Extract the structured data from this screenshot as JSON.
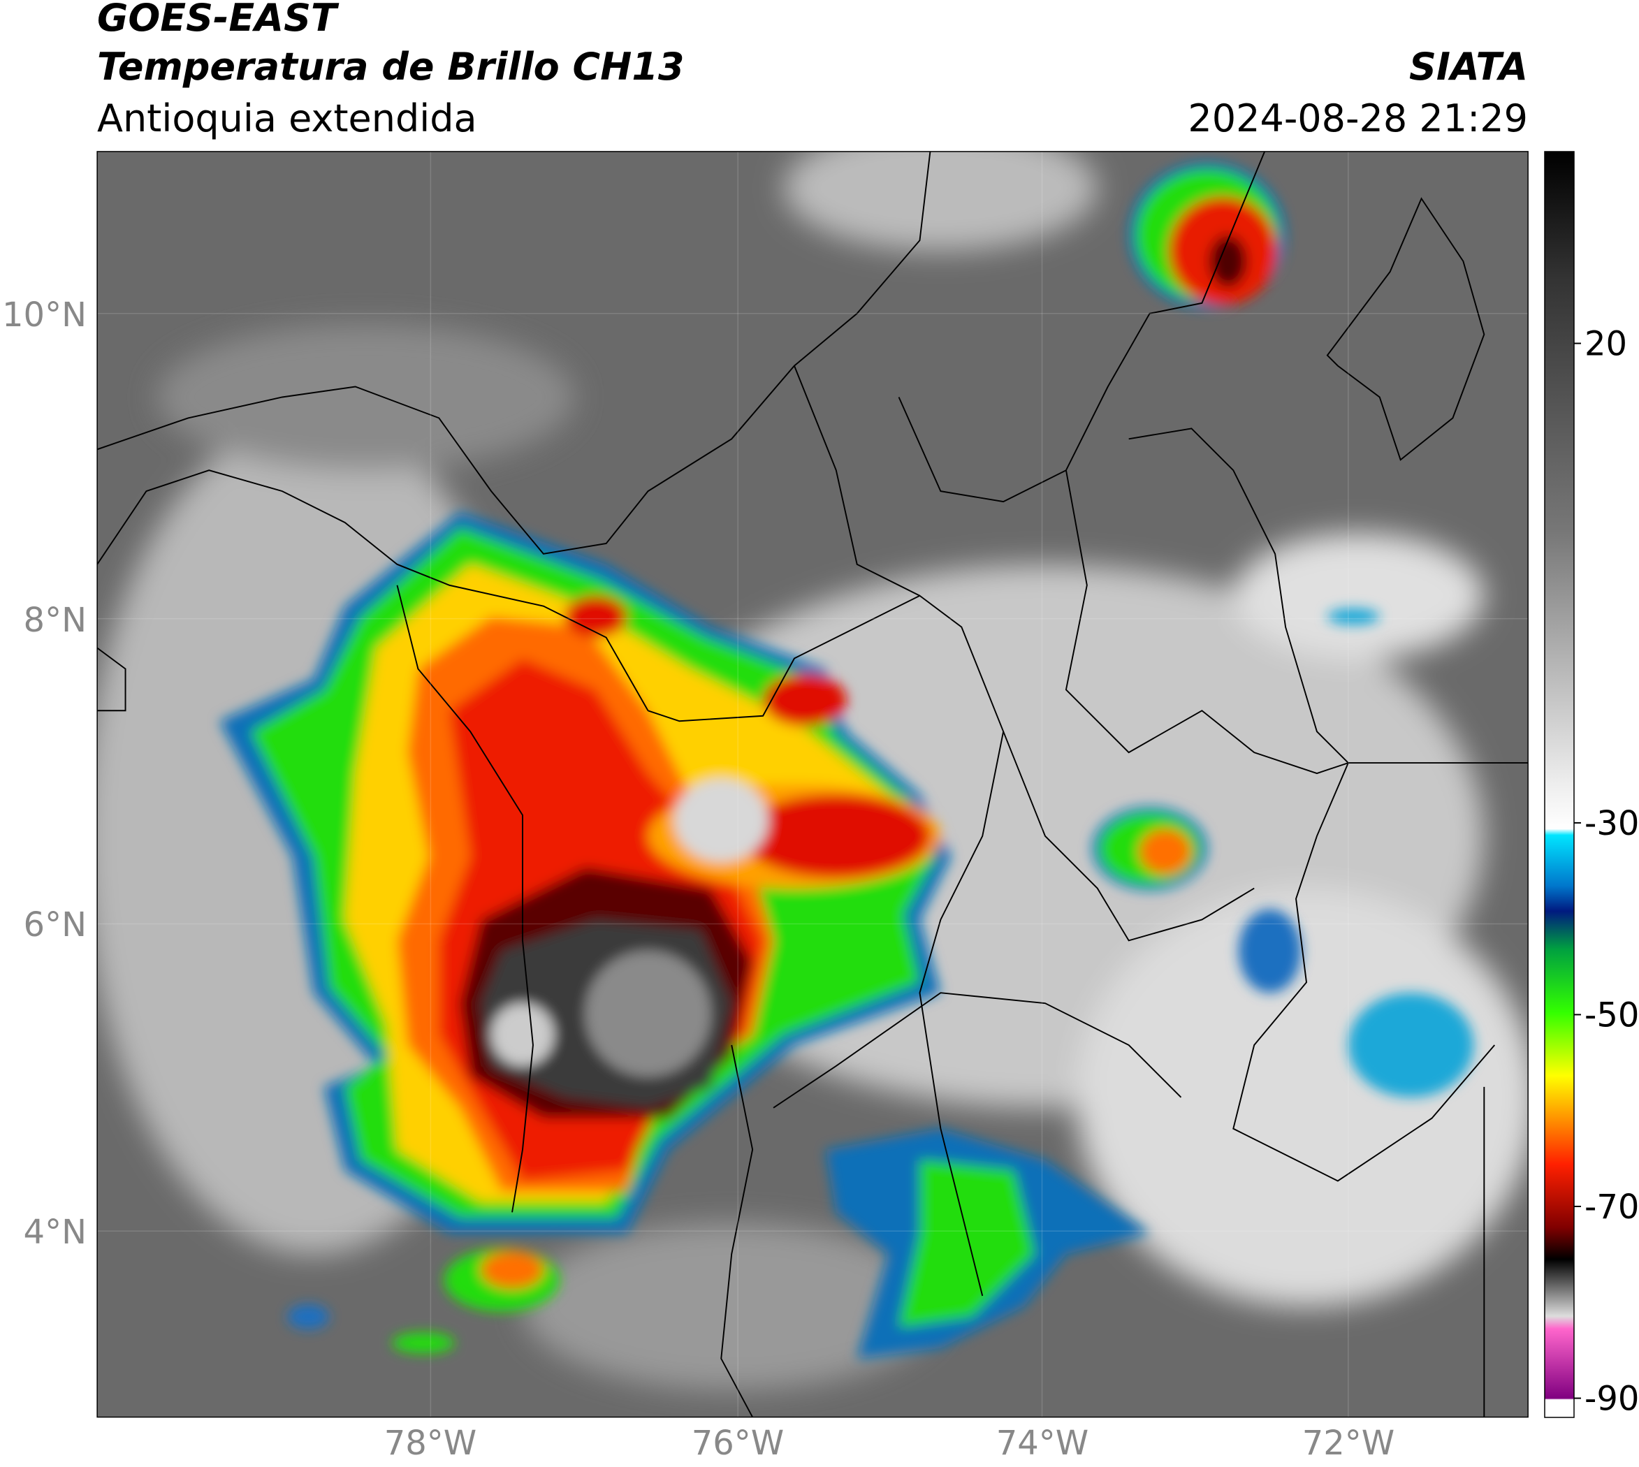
{
  "header": {
    "title": "GOES-EAST",
    "subtitle": "Temperatura de Brillo CH13",
    "region": "Antioquia extendida",
    "source": "SIATA",
    "timestamp": "2024-08-28 21:29"
  },
  "map": {
    "lat_labels": [
      "10°N",
      "8°N",
      "6°N",
      "4°N"
    ],
    "lon_labels": [
      "78°W",
      "76°W",
      "74°W",
      "72°W"
    ]
  },
  "colorbar": {
    "lim": [
      -92,
      40
    ],
    "ticks": [
      20,
      -30,
      -50,
      -70,
      -90
    ]
  }
}
